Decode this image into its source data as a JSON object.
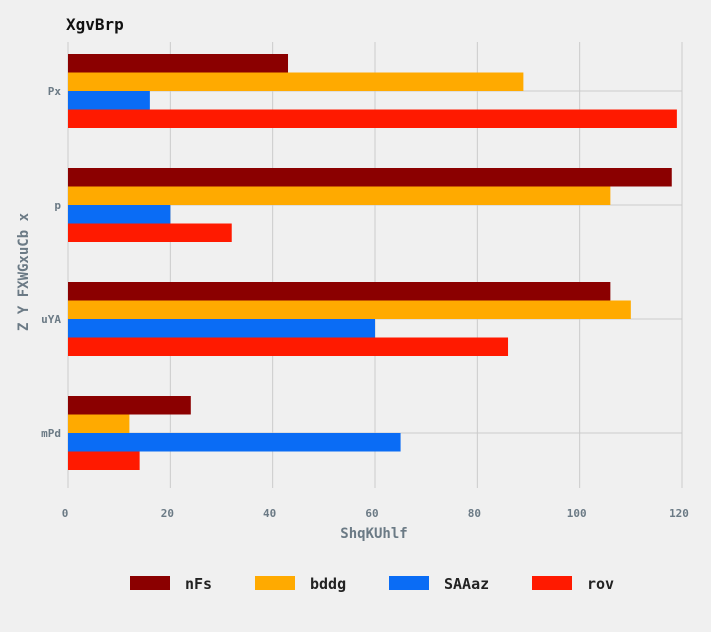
{
  "chart_data": {
    "type": "bar",
    "orientation": "horizontal",
    "title": "XgvBrp",
    "xlabel": "ShqKUhlf",
    "ylabel": "Z Y FXWGxuCb x",
    "categories": [
      "Px",
      "p",
      "uYA",
      "mPd"
    ],
    "xlim": [
      0,
      120
    ],
    "xticks": [
      0,
      20,
      40,
      60,
      80,
      100,
      120
    ],
    "grid": true,
    "legend_position": "bottom",
    "series": [
      {
        "name": "nFs",
        "color": "#8b0000",
        "values": [
          43,
          118,
          106,
          24
        ]
      },
      {
        "name": "bddg",
        "color": "#ffaa00",
        "values": [
          89,
          106,
          110,
          12
        ]
      },
      {
        "name": "SAAaz",
        "color": "#0a6cf5",
        "values": [
          16,
          20,
          60,
          65
        ]
      },
      {
        "name": "rov",
        "color": "#ff1a00",
        "values": [
          119,
          32,
          86,
          14
        ]
      }
    ]
  }
}
